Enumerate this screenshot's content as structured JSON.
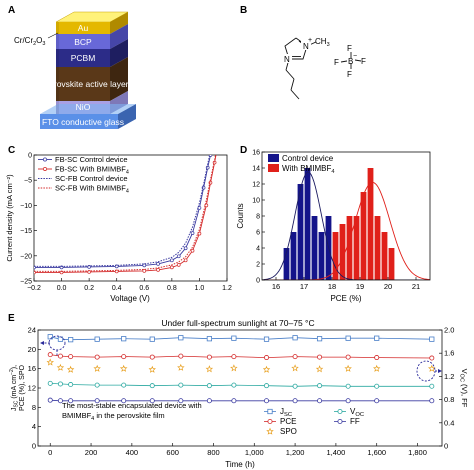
{
  "panels": {
    "A": {
      "label": "A",
      "layers": [
        "Au",
        "BCP",
        "PCBM",
        "Perovskite active layer",
        "NiO",
        "FTO conductive glass"
      ],
      "callout_base": "Cr/Cr",
      "callout_sub": "2",
      "callout_rest": "O",
      "callout_sub2": "3"
    },
    "B": {
      "label": "B",
      "atoms": {
        "n_plus": "N",
        "plus": "+",
        "methyl": "CH",
        "methyl_sub": "3",
        "n": "N",
        "b": "B",
        "b_minus": "−",
        "f1": "F",
        "f2": "F",
        "f3": "F",
        "f4": "F"
      }
    },
    "C": {
      "label": "C"
    },
    "D": {
      "label": "D"
    },
    "E": {
      "label": "E"
    }
  },
  "chart_data": [
    {
      "id": "C",
      "type": "line",
      "xlabel": "Voltage (V)",
      "ylabel": "Current density (mA cm⁻²)",
      "xlim": [
        -0.2,
        1.2
      ],
      "ylim": [
        -25,
        0
      ],
      "xticks": [
        -0.2,
        0.0,
        0.2,
        0.4,
        0.6,
        0.8,
        1.0,
        1.2
      ],
      "xtick_labels": [
        "−0.2",
        "0.0",
        "0.2",
        "0.4",
        "0.6",
        "0.8",
        "1.0",
        "1.2"
      ],
      "yticks": [
        -25,
        -20,
        -15,
        -10,
        -5,
        0
      ],
      "ytick_labels": [
        "−25",
        "−20",
        "−15",
        "−10",
        "−5",
        "0"
      ],
      "legend_placement": "top-left",
      "series": [
        {
          "name": "FB-SC Control device",
          "color": "#3a3aa0",
          "style": "solid-open-circle",
          "x": [
            -0.2,
            0.0,
            0.2,
            0.4,
            0.6,
            0.7,
            0.8,
            0.85,
            0.9,
            0.95,
            1.0,
            1.03,
            1.06,
            1.08,
            1.1
          ],
          "y": [
            -22.3,
            -22.3,
            -22.2,
            -22.1,
            -21.9,
            -21.6,
            -20.9,
            -20.1,
            -18.5,
            -15.5,
            -10.5,
            -6.5,
            -2.5,
            0.0,
            3.0
          ]
        },
        {
          "name": "FB-SC With BMIMBF4",
          "color": "#d42a2a",
          "style": "solid-open-circle",
          "x": [
            -0.2,
            0.0,
            0.2,
            0.4,
            0.6,
            0.7,
            0.8,
            0.85,
            0.9,
            0.95,
            1.0,
            1.05,
            1.08,
            1.11,
            1.14
          ],
          "y": [
            -23.3,
            -23.3,
            -23.2,
            -23.1,
            -23.0,
            -22.8,
            -22.3,
            -21.8,
            -20.9,
            -19.0,
            -15.6,
            -10.0,
            -5.5,
            -1.5,
            3.0
          ]
        },
        {
          "name": "SC-FB Control device",
          "color": "#3a3aa0",
          "style": "dotted",
          "x": [
            -0.2,
            0.0,
            0.2,
            0.4,
            0.6,
            0.7,
            0.8,
            0.85,
            0.9,
            0.95,
            1.0,
            1.03,
            1.06,
            1.09
          ],
          "y": [
            -22.1,
            -22.1,
            -22.0,
            -21.9,
            -21.6,
            -21.2,
            -20.3,
            -19.3,
            -17.5,
            -14.3,
            -9.5,
            -5.8,
            -1.8,
            2.0
          ]
        },
        {
          "name": "SC-FB With BMIMBF4",
          "color": "#d42a2a",
          "style": "dotted",
          "x": [
            -0.2,
            0.0,
            0.2,
            0.4,
            0.6,
            0.7,
            0.8,
            0.85,
            0.9,
            0.95,
            1.0,
            1.05,
            1.08,
            1.11,
            1.13
          ],
          "y": [
            -23.1,
            -23.1,
            -23.0,
            -22.9,
            -22.7,
            -22.4,
            -21.8,
            -21.2,
            -20.2,
            -18.3,
            -14.8,
            -9.0,
            -4.8,
            -1.0,
            2.0
          ]
        }
      ],
      "legend": [
        {
          "base": "FB-SC Control device",
          "sub": ""
        },
        {
          "base": "FB-SC With BMIMBF",
          "sub": "4"
        },
        {
          "base": "SC-FB Control device",
          "sub": ""
        },
        {
          "base": "SC-FB With BMIMBF",
          "sub": "4"
        }
      ]
    },
    {
      "id": "D",
      "type": "bar",
      "xlabel": "PCE (%)",
      "ylabel": "Counts",
      "xlim": [
        15.5,
        21.5
      ],
      "ylim": [
        0,
        16
      ],
      "xticks": [
        16,
        17,
        18,
        19,
        20,
        21
      ],
      "xtick_labels": [
        "16",
        "17",
        "18",
        "19",
        "20",
        "21"
      ],
      "yticks": [
        0,
        2,
        4,
        6,
        8,
        10,
        12,
        14,
        16
      ],
      "ytick_labels": [
        "0",
        "2",
        "4",
        "6",
        "8",
        "10",
        "12",
        "14",
        "16"
      ],
      "bin_width": 0.25,
      "legend_placement": "top-left",
      "series": [
        {
          "name": "Control device",
          "color": "#14148a",
          "x": [
            16.375,
            16.625,
            16.875,
            17.125,
            17.375,
            17.625,
            17.875
          ],
          "values": [
            4,
            6,
            12,
            14,
            8,
            6,
            8
          ],
          "fit": {
            "mu": 17.15,
            "sigma": 0.47,
            "peak": 13.5
          }
        },
        {
          "name": "With BMIMBF4",
          "color": "#e0201a",
          "x": [
            18.125,
            18.375,
            18.625,
            18.875,
            19.125,
            19.375,
            19.625,
            19.875,
            20.125
          ],
          "values": [
            6,
            7,
            8,
            8,
            11,
            14,
            8,
            6,
            4
          ],
          "fit": {
            "mu": 19.45,
            "sigma": 0.62,
            "peak": 12.2
          }
        }
      ],
      "legend": [
        {
          "base": "Control device",
          "sub": ""
        },
        {
          "base": "With BMIMBF",
          "sub": "4"
        }
      ]
    },
    {
      "id": "E",
      "type": "scatter",
      "title": "Under full-spectrum sunlight at 70–75 °C",
      "xlabel": "Time (h)",
      "ylabel_left": "J_SC (mA cm⁻²), PCE (%), SPO",
      "ylabel_right": "V_OC (V), FF",
      "xlim": [
        -60,
        1920
      ],
      "ylim_left": [
        0,
        24
      ],
      "ylim_right": [
        0,
        2.0
      ],
      "xticks": [
        0,
        200,
        400,
        600,
        800,
        1000,
        1200,
        1400,
        1600,
        1800
      ],
      "xtick_labels": [
        "0",
        "200",
        "400",
        "600",
        "800",
        "1,000",
        "1,200",
        "1,400",
        "1,600",
        "1,800"
      ],
      "yticks_left": [
        0,
        4,
        8,
        12,
        16,
        20,
        24
      ],
      "ytick_labels_left": [
        "0",
        "4",
        "8",
        "12",
        "16",
        "20",
        "24"
      ],
      "yticks_right": [
        0,
        0.4,
        0.8,
        1.2,
        1.6,
        2.0
      ],
      "ytick_labels_right": [
        "0",
        "0.4",
        "0.8",
        "1.2",
        "1.6",
        "2.0"
      ],
      "annotation": [
        "The most-stable encapsulated device with",
        "BMIMBF",
        "4",
        " in the perovskite film"
      ],
      "series": [
        {
          "name": "JSC",
          "legend_base": "J",
          "legend_sub": "SC",
          "axis": "left",
          "color": "#4a7fc8",
          "marker": "square",
          "x": [
            0,
            50,
            100,
            230,
            360,
            500,
            640,
            780,
            900,
            1060,
            1200,
            1320,
            1460,
            1600,
            1870
          ],
          "y": [
            22.6,
            22.1,
            22.0,
            22.1,
            22.2,
            22.1,
            22.4,
            22.2,
            22.3,
            22.1,
            22.4,
            22.2,
            22.3,
            22.3,
            22.1
          ]
        },
        {
          "name": "VOC",
          "legend_base": "V",
          "legend_sub": "OC",
          "axis": "right",
          "color": "#2aa8a0",
          "marker": "circle",
          "x": [
            0,
            50,
            100,
            230,
            360,
            500,
            640,
            780,
            900,
            1060,
            1200,
            1320,
            1460,
            1600,
            1870
          ],
          "y": [
            1.08,
            1.07,
            1.06,
            1.05,
            1.05,
            1.04,
            1.05,
            1.04,
            1.05,
            1.04,
            1.03,
            1.04,
            1.03,
            1.03,
            1.03
          ]
        },
        {
          "name": "PCE",
          "legend_base": "PCE",
          "legend_sub": "",
          "axis": "left",
          "color": "#d42a2a",
          "marker": "circle",
          "x": [
            0,
            50,
            100,
            230,
            360,
            500,
            640,
            780,
            900,
            1060,
            1200,
            1320,
            1460,
            1600,
            1870
          ],
          "y": [
            18.9,
            18.6,
            18.5,
            18.4,
            18.5,
            18.4,
            18.6,
            18.4,
            18.5,
            18.3,
            18.5,
            18.4,
            18.4,
            18.3,
            18.2
          ]
        },
        {
          "name": "FF",
          "legend_base": "FF",
          "legend_sub": "",
          "axis": "right",
          "color": "#3a3aa0",
          "marker": "circle",
          "x": [
            0,
            50,
            100,
            230,
            360,
            500,
            640,
            780,
            900,
            1060,
            1200,
            1320,
            1460,
            1600,
            1870
          ],
          "y": [
            0.79,
            0.78,
            0.78,
            0.78,
            0.78,
            0.78,
            0.78,
            0.78,
            0.78,
            0.78,
            0.78,
            0.78,
            0.78,
            0.78,
            0.78
          ]
        },
        {
          "name": "SPO",
          "legend_base": "SPO",
          "legend_sub": "",
          "axis": "left",
          "color": "#e8a020",
          "marker": "star",
          "x": [
            0,
            50,
            100,
            230,
            360,
            500,
            640,
            780,
            900,
            1060,
            1200,
            1320,
            1460,
            1600,
            1870
          ],
          "y": [
            17.3,
            16.2,
            15.8,
            16.0,
            16.0,
            15.8,
            16.2,
            15.9,
            16.1,
            15.8,
            16.1,
            15.9,
            16.0,
            16.0,
            16.0
          ]
        }
      ]
    }
  ]
}
